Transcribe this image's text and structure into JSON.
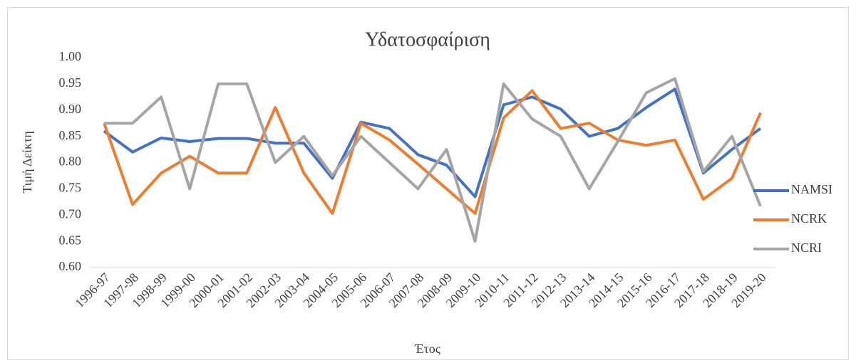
{
  "chart_data": {
    "type": "line",
    "title": "Υδατοσφαίριση",
    "x_label": "Έτος",
    "y_label": "Τιμή Δείκτη",
    "categories": [
      "1996-97",
      "1997-98",
      "1998-99",
      "1999-00",
      "2000-01",
      "2001-02",
      "2002-03",
      "2003-04",
      "2004-05",
      "2005-06",
      "2006-07",
      "2007-08",
      "2008-09",
      "2009-10",
      "2010-11",
      "2011-12",
      "2012-13",
      "2013-14",
      "2014-15",
      "2015-16",
      "2016-17",
      "2017-18",
      "2018-19",
      "2019-20"
    ],
    "series": [
      {
        "name": "NAMSI",
        "color": "#4472c4",
        "values": [
          0.86,
          0.82,
          0.847,
          0.84,
          0.846,
          0.846,
          0.837,
          0.837,
          0.77,
          0.877,
          0.865,
          0.815,
          0.795,
          0.735,
          0.91,
          0.925,
          0.902,
          0.85,
          0.865,
          0.905,
          0.94,
          0.78,
          0.825,
          0.865
        ]
      },
      {
        "name": "NCRK",
        "color": "#ed7d31",
        "values": [
          0.875,
          0.72,
          0.78,
          0.812,
          0.78,
          0.78,
          0.905,
          0.78,
          0.703,
          0.875,
          0.843,
          0.797,
          0.75,
          0.703,
          0.885,
          0.937,
          0.865,
          0.875,
          0.843,
          0.833,
          0.843,
          0.73,
          0.77,
          0.895
        ]
      },
      {
        "name": "NCRI",
        "color": "#a5a5a5",
        "values": [
          0.875,
          0.875,
          0.925,
          0.75,
          0.95,
          0.95,
          0.8,
          0.85,
          0.775,
          0.85,
          0.8,
          0.75,
          0.825,
          0.65,
          0.95,
          0.883,
          0.85,
          0.75,
          0.84,
          0.933,
          0.96,
          0.783,
          0.85,
          0.717
        ]
      }
    ],
    "ylim": [
      0.6,
      1.0
    ],
    "yticks": [
      {
        "value": 0.6,
        "label": "0.60"
      },
      0.65,
      {
        "value": 0.7,
        "label": "0.70"
      },
      0.75,
      {
        "value": 0.8,
        "label": "0.80"
      },
      0.85,
      {
        "value": 0.9,
        "label": "0.90"
      },
      0.95,
      {
        "value": 1.0,
        "label": "1.00"
      }
    ],
    "grid": false,
    "legend": "right"
  }
}
